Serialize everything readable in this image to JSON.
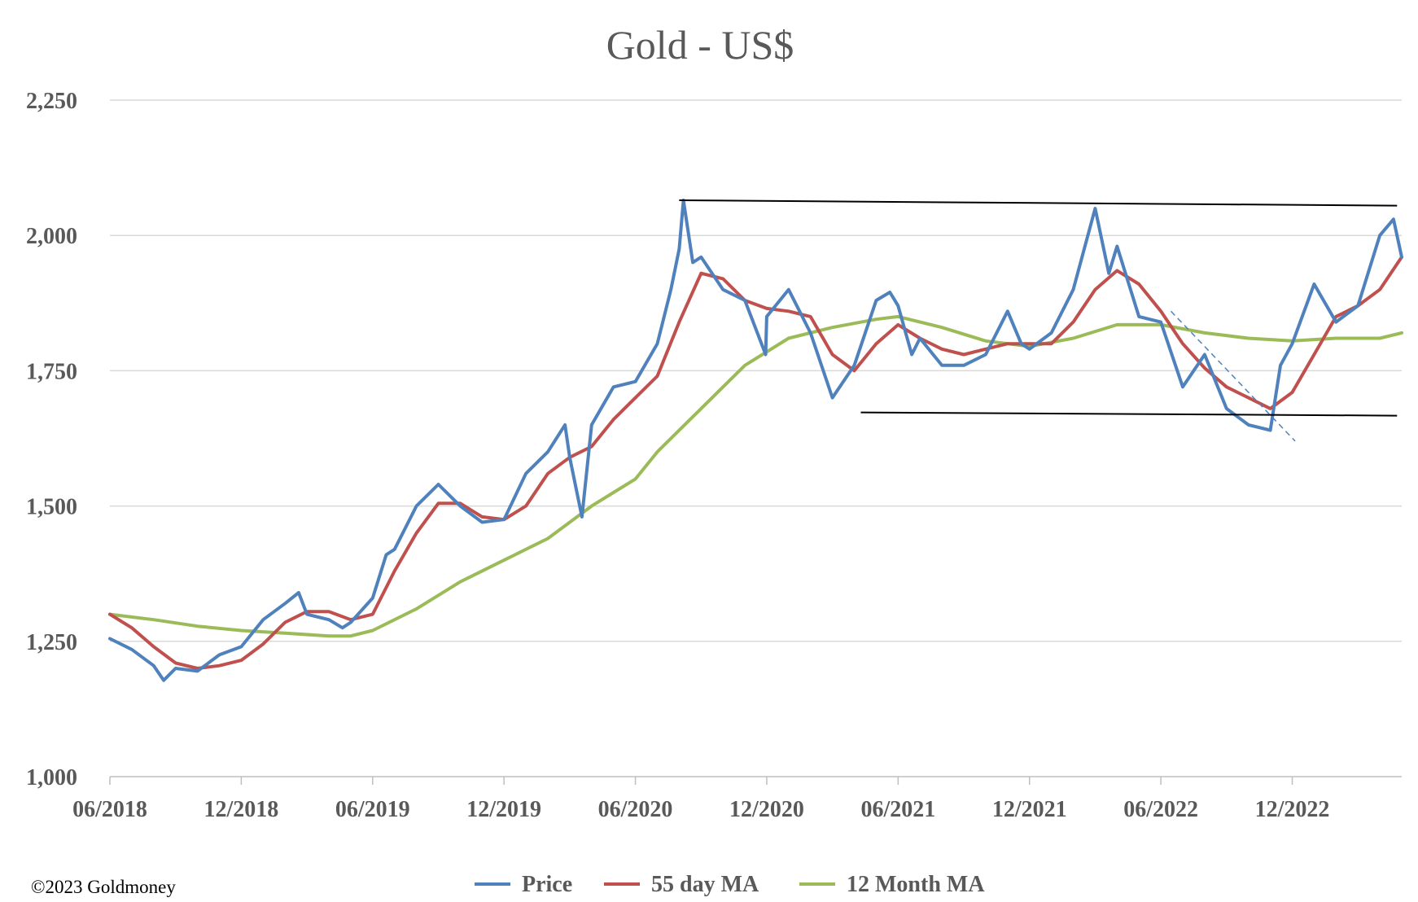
{
  "chart_data": {
    "type": "line",
    "title": "Gold - US$",
    "xlabel": "",
    "ylabel": "",
    "ylim": [
      1000,
      2250
    ],
    "yticks": [
      1000,
      1250,
      1500,
      1750,
      2000,
      2250
    ],
    "ytick_labels": [
      "1,000",
      "1,250",
      "1,500",
      "1,750",
      "2,000",
      "2,250"
    ],
    "xlim": [
      "2018-06",
      "2023-05"
    ],
    "xticks": [
      "2018-06",
      "2018-12",
      "2019-06",
      "2019-12",
      "2020-06",
      "2020-12",
      "2021-06",
      "2021-12",
      "2022-06",
      "2022-12"
    ],
    "xtick_labels": [
      "06/2018",
      "12/2018",
      "06/2019",
      "12/2019",
      "06/2020",
      "12/2020",
      "06/2021",
      "12/2021",
      "06/2022",
      "12/2022"
    ],
    "grid": "horizontal",
    "legend": "bottom",
    "series": [
      {
        "name": "Price",
        "color": "#4f81bd",
        "points": [
          [
            "2018-06",
            1255
          ],
          [
            "2018-07",
            1235
          ],
          [
            "2018-08",
            1205
          ],
          [
            "2018-08-15",
            1178
          ],
          [
            "2018-09",
            1200
          ],
          [
            "2018-10",
            1195
          ],
          [
            "2018-11",
            1225
          ],
          [
            "2018-12",
            1240
          ],
          [
            "2019-01",
            1290
          ],
          [
            "2019-02",
            1320
          ],
          [
            "2019-02-20",
            1340
          ],
          [
            "2019-03",
            1300
          ],
          [
            "2019-04",
            1290
          ],
          [
            "2019-04-20",
            1275
          ],
          [
            "2019-05",
            1285
          ],
          [
            "2019-06",
            1330
          ],
          [
            "2019-06-20",
            1410
          ],
          [
            "2019-07",
            1420
          ],
          [
            "2019-08",
            1500
          ],
          [
            "2019-09",
            1540
          ],
          [
            "2019-10",
            1500
          ],
          [
            "2019-11",
            1470
          ],
          [
            "2019-12",
            1475
          ],
          [
            "2020-01",
            1560
          ],
          [
            "2020-02",
            1600
          ],
          [
            "2020-02-25",
            1650
          ],
          [
            "2020-03",
            1590
          ],
          [
            "2020-03-18",
            1480
          ],
          [
            "2020-04",
            1650
          ],
          [
            "2020-05",
            1720
          ],
          [
            "2020-06",
            1730
          ],
          [
            "2020-07",
            1800
          ],
          [
            "2020-07-20",
            1900
          ],
          [
            "2020-08",
            1975
          ],
          [
            "2020-08-07",
            2065
          ],
          [
            "2020-08-20",
            1950
          ],
          [
            "2020-09",
            1960
          ],
          [
            "2020-10",
            1900
          ],
          [
            "2020-11",
            1880
          ],
          [
            "2020-11-30",
            1780
          ],
          [
            "2020-12",
            1850
          ],
          [
            "2021-01",
            1900
          ],
          [
            "2021-02",
            1820
          ],
          [
            "2021-03",
            1700
          ],
          [
            "2021-04",
            1760
          ],
          [
            "2021-05",
            1880
          ],
          [
            "2021-05-20",
            1895
          ],
          [
            "2021-06",
            1870
          ],
          [
            "2021-06-20",
            1780
          ],
          [
            "2021-07",
            1810
          ],
          [
            "2021-08",
            1760
          ],
          [
            "2021-09",
            1760
          ],
          [
            "2021-10",
            1780
          ],
          [
            "2021-11",
            1860
          ],
          [
            "2021-11-20",
            1800
          ],
          [
            "2021-12",
            1790
          ],
          [
            "2022-01",
            1820
          ],
          [
            "2022-02",
            1900
          ],
          [
            "2022-03",
            2050
          ],
          [
            "2022-03-20",
            1930
          ],
          [
            "2022-04",
            1980
          ],
          [
            "2022-05",
            1850
          ],
          [
            "2022-06",
            1840
          ],
          [
            "2022-07",
            1720
          ],
          [
            "2022-08",
            1780
          ],
          [
            "2022-09",
            1680
          ],
          [
            "2022-10",
            1650
          ],
          [
            "2022-11",
            1640
          ],
          [
            "2022-11-15",
            1760
          ],
          [
            "2022-12",
            1800
          ],
          [
            "2023-01",
            1910
          ],
          [
            "2023-02",
            1840
          ],
          [
            "2023-03",
            1870
          ],
          [
            "2023-04",
            2000
          ],
          [
            "2023-04-20",
            2030
          ],
          [
            "2023-05",
            1960
          ]
        ]
      },
      {
        "name": "55 day MA",
        "color": "#c0504d",
        "points": [
          [
            "2018-06",
            1300
          ],
          [
            "2018-07",
            1275
          ],
          [
            "2018-08",
            1240
          ],
          [
            "2018-09",
            1210
          ],
          [
            "2018-10",
            1200
          ],
          [
            "2018-11",
            1205
          ],
          [
            "2018-12",
            1215
          ],
          [
            "2019-01",
            1245
          ],
          [
            "2019-02",
            1285
          ],
          [
            "2019-03",
            1305
          ],
          [
            "2019-04",
            1305
          ],
          [
            "2019-05",
            1290
          ],
          [
            "2019-06",
            1300
          ],
          [
            "2019-07",
            1380
          ],
          [
            "2019-08",
            1450
          ],
          [
            "2019-09",
            1505
          ],
          [
            "2019-10",
            1505
          ],
          [
            "2019-11",
            1480
          ],
          [
            "2019-12",
            1475
          ],
          [
            "2020-01",
            1500
          ],
          [
            "2020-02",
            1560
          ],
          [
            "2020-03",
            1590
          ],
          [
            "2020-04",
            1610
          ],
          [
            "2020-05",
            1660
          ],
          [
            "2020-06",
            1700
          ],
          [
            "2020-07",
            1740
          ],
          [
            "2020-08",
            1840
          ],
          [
            "2020-09",
            1930
          ],
          [
            "2020-10",
            1920
          ],
          [
            "2020-11",
            1880
          ],
          [
            "2020-12",
            1865
          ],
          [
            "2021-01",
            1860
          ],
          [
            "2021-02",
            1850
          ],
          [
            "2021-03",
            1780
          ],
          [
            "2021-04",
            1750
          ],
          [
            "2021-05",
            1800
          ],
          [
            "2021-06",
            1835
          ],
          [
            "2021-07",
            1810
          ],
          [
            "2021-08",
            1790
          ],
          [
            "2021-09",
            1780
          ],
          [
            "2021-10",
            1790
          ],
          [
            "2021-11",
            1800
          ],
          [
            "2021-12",
            1800
          ],
          [
            "2022-01",
            1800
          ],
          [
            "2022-02",
            1840
          ],
          [
            "2022-03",
            1900
          ],
          [
            "2022-04",
            1935
          ],
          [
            "2022-05",
            1910
          ],
          [
            "2022-06",
            1860
          ],
          [
            "2022-07",
            1800
          ],
          [
            "2022-08",
            1755
          ],
          [
            "2022-09",
            1720
          ],
          [
            "2022-10",
            1700
          ],
          [
            "2022-11",
            1680
          ],
          [
            "2022-12",
            1710
          ],
          [
            "2023-01",
            1780
          ],
          [
            "2023-02",
            1850
          ],
          [
            "2023-03",
            1870
          ],
          [
            "2023-04",
            1900
          ],
          [
            "2023-05",
            1960
          ]
        ]
      },
      {
        "name": "12 Month MA",
        "color": "#9bbb59",
        "points": [
          [
            "2018-06",
            1300
          ],
          [
            "2018-08",
            1290
          ],
          [
            "2018-10",
            1278
          ],
          [
            "2018-12",
            1270
          ],
          [
            "2019-02",
            1265
          ],
          [
            "2019-04",
            1260
          ],
          [
            "2019-05",
            1260
          ],
          [
            "2019-06",
            1270
          ],
          [
            "2019-08",
            1310
          ],
          [
            "2019-10",
            1360
          ],
          [
            "2019-12",
            1400
          ],
          [
            "2020-02",
            1440
          ],
          [
            "2020-04",
            1500
          ],
          [
            "2020-06",
            1550
          ],
          [
            "2020-07",
            1600
          ],
          [
            "2020-09",
            1680
          ],
          [
            "2020-11",
            1760
          ],
          [
            "2021-01",
            1810
          ],
          [
            "2021-03",
            1830
          ],
          [
            "2021-05",
            1845
          ],
          [
            "2021-06",
            1850
          ],
          [
            "2021-08",
            1830
          ],
          [
            "2021-10",
            1805
          ],
          [
            "2021-12",
            1795
          ],
          [
            "2022-02",
            1810
          ],
          [
            "2022-04",
            1835
          ],
          [
            "2022-06",
            1835
          ],
          [
            "2022-08",
            1820
          ],
          [
            "2022-10",
            1810
          ],
          [
            "2022-12",
            1805
          ],
          [
            "2023-02",
            1810
          ],
          [
            "2023-04",
            1810
          ],
          [
            "2023-05",
            1820
          ]
        ]
      }
    ],
    "annotations": [
      {
        "kind": "trendline",
        "color": "#000000",
        "style": "solid",
        "from": [
          "2020-08",
          2065
        ],
        "to": [
          "2023-04-25",
          2055
        ]
      },
      {
        "kind": "trendline",
        "color": "#000000",
        "style": "solid",
        "from": [
          "2021-04-10",
          1673
        ],
        "to": [
          "2023-04-25",
          1667
        ]
      },
      {
        "kind": "trendline",
        "color": "#4f81bd",
        "style": "dashed",
        "from": [
          "2022-06-15",
          1860
        ],
        "to": [
          "2022-12-05",
          1620
        ]
      }
    ]
  },
  "footer": {
    "copyright": "©2023 Goldmoney"
  }
}
